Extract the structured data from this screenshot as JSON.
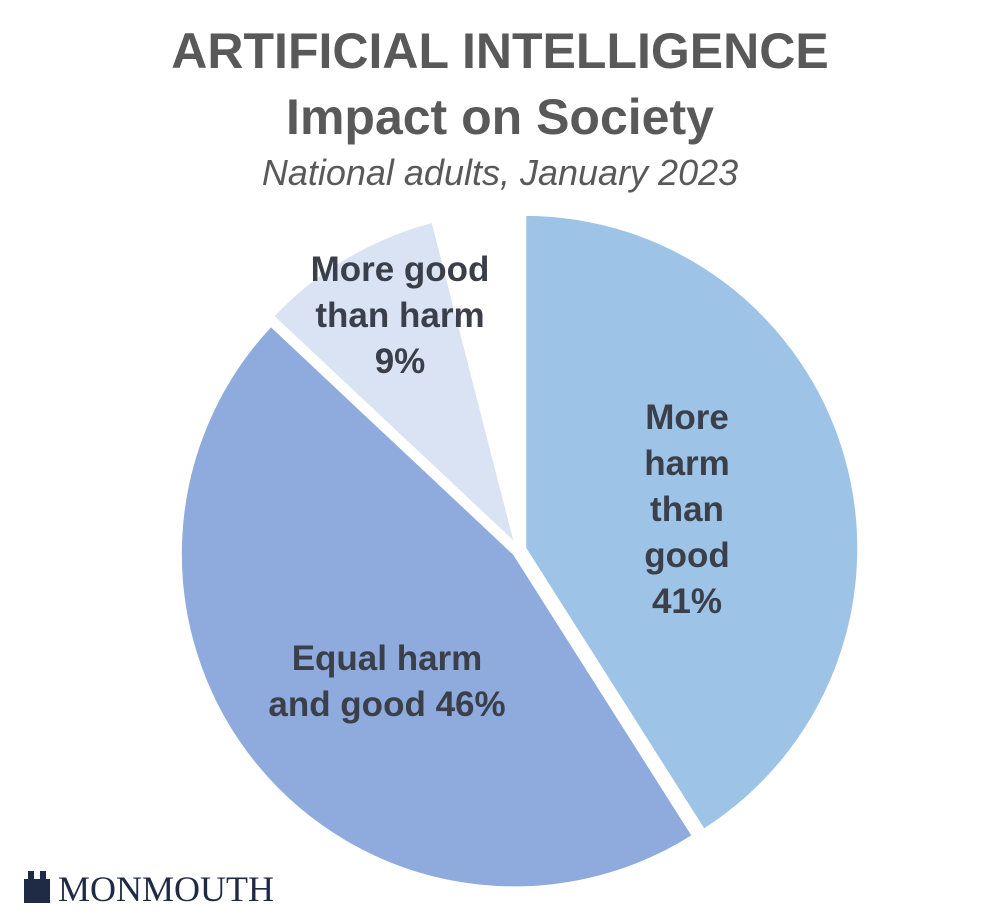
{
  "chart_data": {
    "type": "pie",
    "title": "ARTIFICIAL INTELLIGENCE",
    "subtitle": "Impact on Society",
    "caption": "National adults, January 2023",
    "categories": [
      "More harm than good",
      "Equal harm and good",
      "More good than harm"
    ],
    "values": [
      41,
      46,
      9
    ],
    "value_labels": [
      "41%",
      "46%",
      "9%"
    ],
    "colors": [
      "#9dc3e6",
      "#8faadc",
      "#dae3f3"
    ],
    "source": "MONMOUTH"
  }
}
